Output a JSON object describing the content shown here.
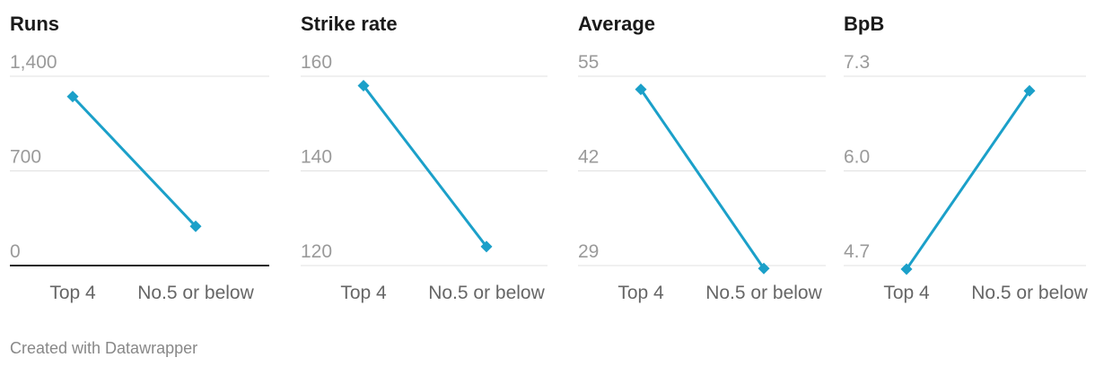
{
  "footer": {
    "credit": "Created with Datawrapper"
  },
  "colors": {
    "line": "#1ba0c9",
    "grid": "#e0e0e0",
    "axis_text": "#9a9a9a",
    "title": "#1a1a1a",
    "baseline": "#222222"
  },
  "chart_data": [
    {
      "type": "line",
      "title": "Runs",
      "categories": [
        "Top 4",
        "No.5 or below"
      ],
      "values": [
        1250,
        290
      ],
      "yticks": [
        "1,400",
        "700",
        "0"
      ],
      "ylim": [
        0,
        1400
      ],
      "grid": true,
      "baseline": true
    },
    {
      "type": "line",
      "title": "Strike rate",
      "categories": [
        "Top 4",
        "No.5 or below"
      ],
      "values": [
        158,
        124
      ],
      "yticks": [
        "160",
        "140",
        "120"
      ],
      "ylim": [
        120,
        160
      ],
      "grid": true,
      "baseline": false
    },
    {
      "type": "line",
      "title": "Average",
      "categories": [
        "Top 4",
        "No.5 or below"
      ],
      "values": [
        53.2,
        28.6
      ],
      "yticks": [
        "55",
        "42",
        "29"
      ],
      "ylim": [
        29,
        55
      ],
      "grid": true,
      "baseline": false
    },
    {
      "type": "line",
      "title": "BpB",
      "categories": [
        "Top 4",
        "No.5 or below"
      ],
      "values": [
        4.65,
        7.1
      ],
      "yticks": [
        "7.3",
        "6.0",
        "4.7"
      ],
      "ylim": [
        4.7,
        7.3
      ],
      "grid": true,
      "baseline": false
    }
  ]
}
